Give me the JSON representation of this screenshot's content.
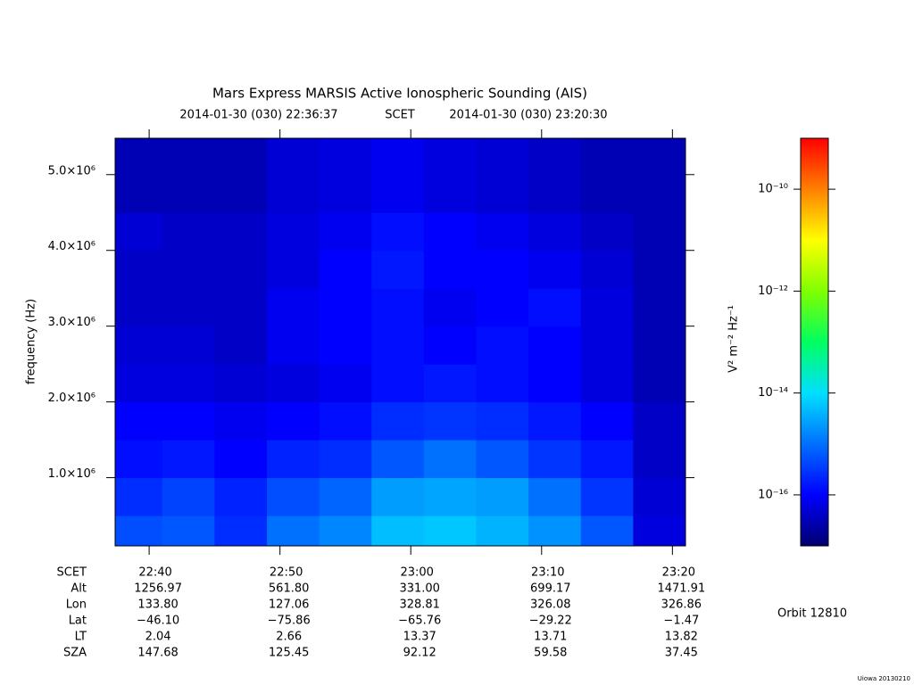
{
  "chart_data": {
    "type": "heatmap",
    "title": "Mars Express MARSIS Active Ionospheric Sounding (AIS)",
    "subtitle": {
      "start": "2014-01-30 (030) 22:36:37",
      "middle": "SCET",
      "end": "2014-01-30 (030) 23:20:30"
    },
    "ylabel": "frequency (Hz)",
    "xlabel": "SCET",
    "x_bins": [
      "22:37:24",
      "22:41",
      "22:45",
      "22:49",
      "22:53",
      "22:57",
      "23:01",
      "23:05",
      "23:09",
      "23:13",
      "23:17",
      "23:21:00"
    ],
    "y_bins": [
      100000,
      500000,
      1000000,
      1500000,
      2000000,
      2500000,
      3000000,
      3500000,
      4000000,
      4500000,
      5480000
    ],
    "values": [
      [
        5e-16,
        6e-16,
        2.5e-16,
        1e-15,
        1.6e-15,
        5e-15,
        6e-15,
        4e-15,
        2e-15,
        6e-16,
        6e-17
      ],
      [
        2.5e-16,
        4e-16,
        2e-16,
        5e-16,
        8e-16,
        2.5e-15,
        3e-15,
        2.5e-15,
        1e-15,
        3e-16,
        5e-17
      ],
      [
        1.3e-16,
        1.6e-16,
        1e-16,
        2e-16,
        2.5e-16,
        6e-16,
        1e-15,
        6e-16,
        3e-16,
        1.6e-16,
        4e-17
      ],
      [
        1e-16,
        1e-16,
        8e-17,
        1e-16,
        1.3e-16,
        2.5e-16,
        3e-16,
        2.5e-16,
        1.6e-16,
        1e-16,
        4e-17
      ],
      [
        6e-17,
        6e-17,
        5e-17,
        6e-17,
        8e-17,
        1.3e-16,
        1.6e-16,
        1.3e-16,
        1e-16,
        6e-17,
        3e-17
      ],
      [
        5e-17,
        5e-17,
        4e-17,
        8e-17,
        1e-16,
        1.3e-16,
        1e-16,
        1.3e-16,
        1e-16,
        6e-17,
        3e-17
      ],
      [
        4e-17,
        4e-17,
        4e-17,
        8e-17,
        1e-16,
        1.3e-16,
        8e-17,
        1e-16,
        1.3e-16,
        6e-17,
        3e-17
      ],
      [
        4e-17,
        4e-17,
        4e-17,
        6e-17,
        1e-16,
        1.6e-16,
        1e-16,
        1e-16,
        8e-17,
        5e-17,
        3e-17
      ],
      [
        5e-17,
        4e-17,
        4e-17,
        6e-17,
        8e-17,
        1.3e-16,
        1e-16,
        8e-17,
        6e-17,
        4e-17,
        3e-17
      ],
      [
        3e-17,
        3e-17,
        3e-17,
        5e-17,
        6e-17,
        8e-17,
        6e-17,
        5e-17,
        4e-17,
        3e-17,
        3e-17
      ]
    ],
    "xlim": [
      "22:37:24",
      "23:21:00"
    ],
    "xticks": [
      "22:40",
      "22:50",
      "23:00",
      "23:10",
      "23:20"
    ],
    "ylim": [
      100000,
      5480000
    ],
    "yticks": [
      {
        "value": 1000000,
        "label": "1.0×10⁶"
      },
      {
        "value": 2000000,
        "label": "2.0×10⁶"
      },
      {
        "value": 3000000,
        "label": "3.0×10⁶"
      },
      {
        "value": 4000000,
        "label": "4.0×10⁶"
      },
      {
        "value": 5000000,
        "label": "5.0×10⁶"
      }
    ],
    "colorbar": {
      "label": "V² m⁻² Hz⁻¹",
      "log": true,
      "zlim": [
        1e-17,
        1e-09
      ],
      "zticks": [
        {
          "value": 1e-10,
          "label": "10⁻¹⁰"
        },
        {
          "value": 1e-12,
          "label": "10⁻¹²"
        },
        {
          "value": 1e-14,
          "label": "10⁻¹⁴"
        },
        {
          "value": 1e-16,
          "label": "10⁻¹⁶"
        }
      ],
      "colors": [
        "#000070",
        "#0000ff",
        "#0070ff",
        "#00e0ff",
        "#00ff60",
        "#80ff00",
        "#ffff00",
        "#ff8000",
        "#ff0000"
      ]
    },
    "ephemeris": [
      {
        "label": "Alt",
        "values": [
          "1256.97",
          "561.80",
          "331.00",
          "699.17",
          "1471.91"
        ]
      },
      {
        "label": "Lon",
        "values": [
          "133.80",
          "127.06",
          "328.81",
          "326.08",
          "326.86"
        ]
      },
      {
        "label": "Lat",
        "values": [
          "−46.10",
          "−75.86",
          "−65.76",
          "−29.22",
          "−1.47"
        ]
      },
      {
        "label": "LT",
        "values": [
          "2.04",
          "2.66",
          "13.37",
          "13.71",
          "13.82"
        ]
      },
      {
        "label": "SZA",
        "values": [
          "147.68",
          "125.45",
          "92.12",
          "59.58",
          "37.45"
        ]
      }
    ],
    "orbit": "Orbit 12810",
    "footer": "Uiowa 20130210"
  }
}
